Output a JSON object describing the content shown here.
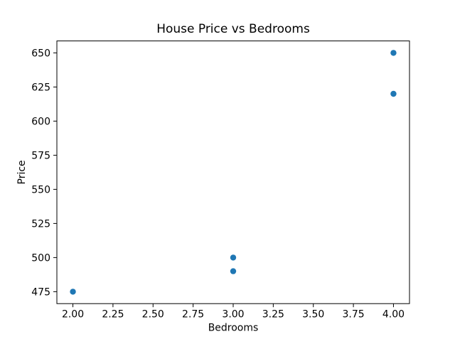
{
  "chart_data": {
    "type": "scatter",
    "title": "House Price vs Bedrooms",
    "xlabel": "Bedrooms",
    "ylabel": "Price",
    "points": [
      {
        "x": 2,
        "y": 475
      },
      {
        "x": 3,
        "y": 490
      },
      {
        "x": 3,
        "y": 500
      },
      {
        "x": 4,
        "y": 620
      },
      {
        "x": 4,
        "y": 650
      }
    ],
    "xlim": [
      1.9,
      4.1
    ],
    "ylim": [
      466.25,
      658.75
    ],
    "xticks": [
      {
        "value": 2.0,
        "label": "2.00"
      },
      {
        "value": 2.25,
        "label": "2.25"
      },
      {
        "value": 2.5,
        "label": "2.50"
      },
      {
        "value": 2.75,
        "label": "2.75"
      },
      {
        "value": 3.0,
        "label": "3.00"
      },
      {
        "value": 3.25,
        "label": "3.25"
      },
      {
        "value": 3.5,
        "label": "3.50"
      },
      {
        "value": 3.75,
        "label": "3.75"
      },
      {
        "value": 4.0,
        "label": "4.00"
      }
    ],
    "yticks": [
      {
        "value": 475,
        "label": "475"
      },
      {
        "value": 500,
        "label": "500"
      },
      {
        "value": 525,
        "label": "525"
      },
      {
        "value": 550,
        "label": "550"
      },
      {
        "value": 575,
        "label": "575"
      },
      {
        "value": 600,
        "label": "600"
      },
      {
        "value": 625,
        "label": "625"
      },
      {
        "value": 650,
        "label": "650"
      }
    ],
    "marker_color": "#1f77b4",
    "axis_color": "#000000",
    "text_color": "#000000",
    "background_color": "#ffffff",
    "grid": false,
    "legend": "none"
  }
}
